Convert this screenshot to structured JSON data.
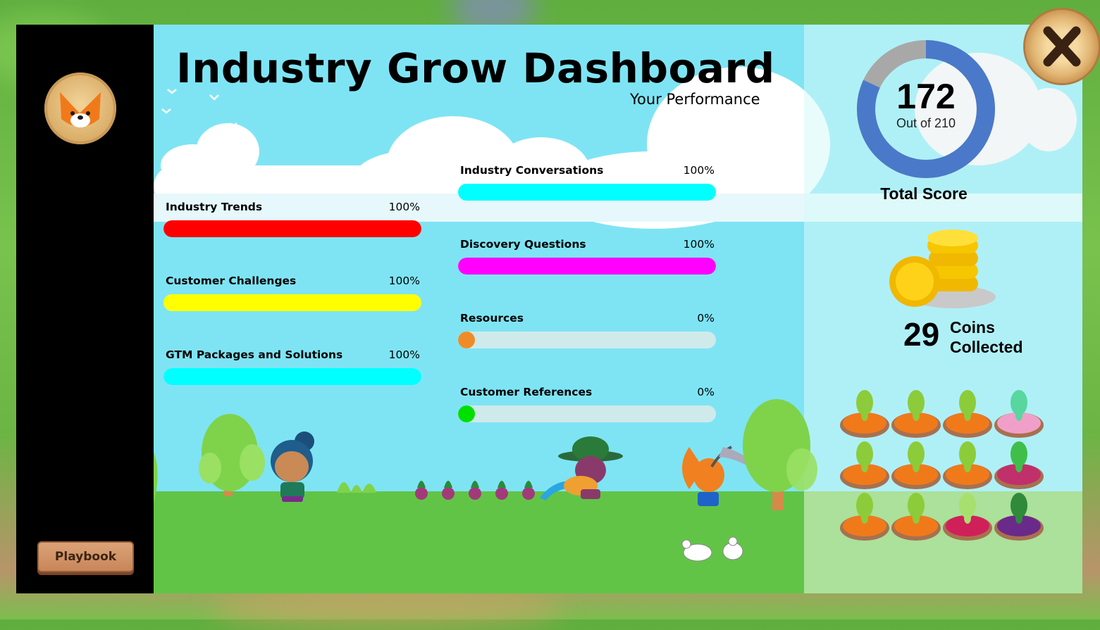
{
  "title": "Industry Grow Dashboard",
  "subtitle": "Your Performance",
  "sidebar": {
    "avatar_icon": "fox-face-icon",
    "playbook_label": "Playbook"
  },
  "progress_bars": [
    {
      "label": "Industry Trends",
      "percent_text": "100%",
      "percent": 100,
      "color": "#ff0000"
    },
    {
      "label": "Customer Challenges",
      "percent_text": "100%",
      "percent": 100,
      "color": "#ffff00"
    },
    {
      "label": "GTM Packages and Solutions",
      "percent_text": "100%",
      "percent": 100,
      "color": "#00ffff"
    },
    {
      "label": "Industry Conversations",
      "percent_text": "100%",
      "percent": 100,
      "color": "#00ffff"
    },
    {
      "label": "Discovery Questions",
      "percent_text": "100%",
      "percent": 100,
      "color": "#ff00ff"
    },
    {
      "label": "Resources",
      "percent_text": "0%",
      "percent": 0,
      "color": "#f08c28"
    },
    {
      "label": "Customer References",
      "percent_text": "0%",
      "percent": 0,
      "color": "#00e000"
    }
  ],
  "score": {
    "value": "172",
    "out_of_text": "Out of 210",
    "label": "Total Score",
    "earned": 172,
    "max": 210,
    "ring_color": "#4a79c9",
    "ring_rest_color": "#a8a8a8"
  },
  "coins": {
    "count": "29",
    "label_line1": "Coins",
    "label_line2": "Collected",
    "icon": "gold-coins-icon"
  },
  "close_icon": "close-x-icon",
  "crops_grid": [
    "carrot",
    "carrot",
    "carrot",
    "radish",
    "carrot",
    "carrot",
    "carrot",
    "sprout",
    "carrot",
    "carrot",
    "beet",
    "broccoli"
  ]
}
